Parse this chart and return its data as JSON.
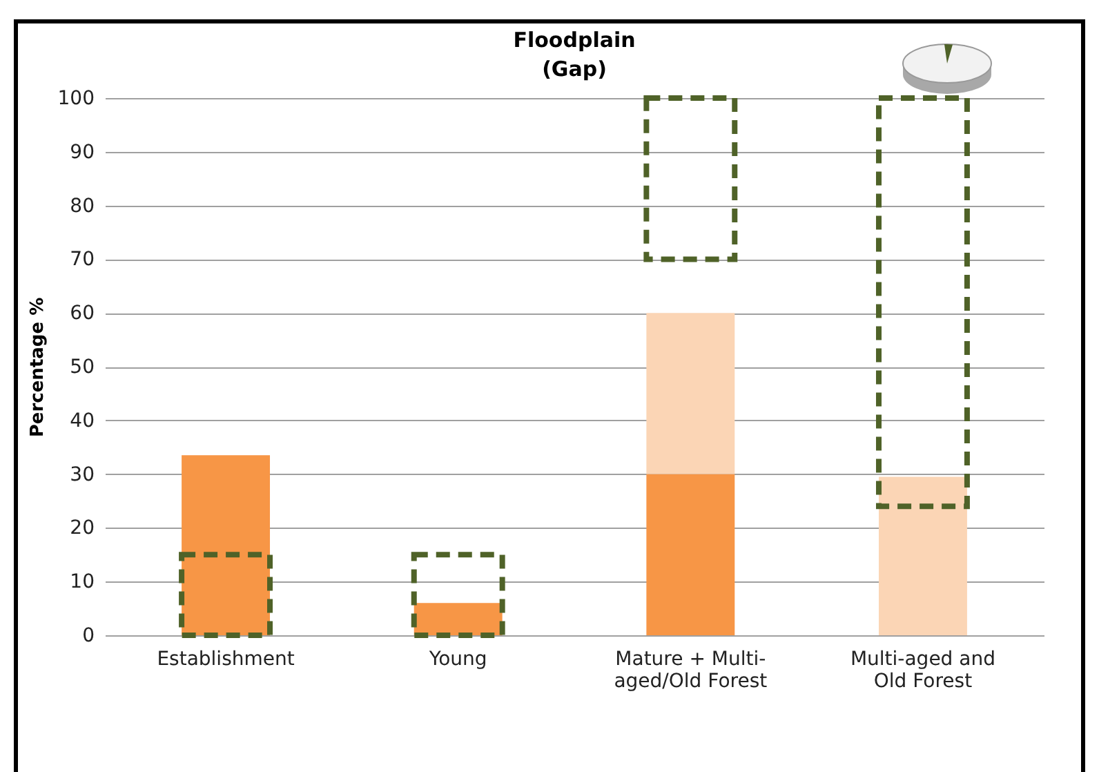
{
  "chart_data": {
    "type": "bar",
    "title": "Floodplain",
    "subtitle": "(Gap)",
    "ylabel": "Percentage %",
    "categories": [
      "Establishment",
      "Young",
      "Mature + Multi-aged/Old Forest",
      "Multi-aged and Old Forest"
    ],
    "ylim": [
      0,
      100
    ],
    "yticks": [
      0,
      10,
      20,
      30,
      40,
      50,
      60,
      70,
      80,
      90,
      100
    ],
    "grid": "y",
    "legend": false,
    "series": [
      {
        "color": "#f79646",
        "values": [
          33.5,
          6,
          30,
          null
        ]
      },
      {
        "color": "#fbd5b5",
        "base": [
          null,
          null,
          30,
          0
        ],
        "values": [
          null,
          null,
          30,
          29.5
        ]
      },
      {
        "type": "bar",
        "color": "#4f6228",
        "line_style": "dashed",
        "base": [
          0,
          0,
          70,
          24
        ],
        "values": [
          15,
          15,
          30,
          76
        ]
      }
    ]
  }
}
